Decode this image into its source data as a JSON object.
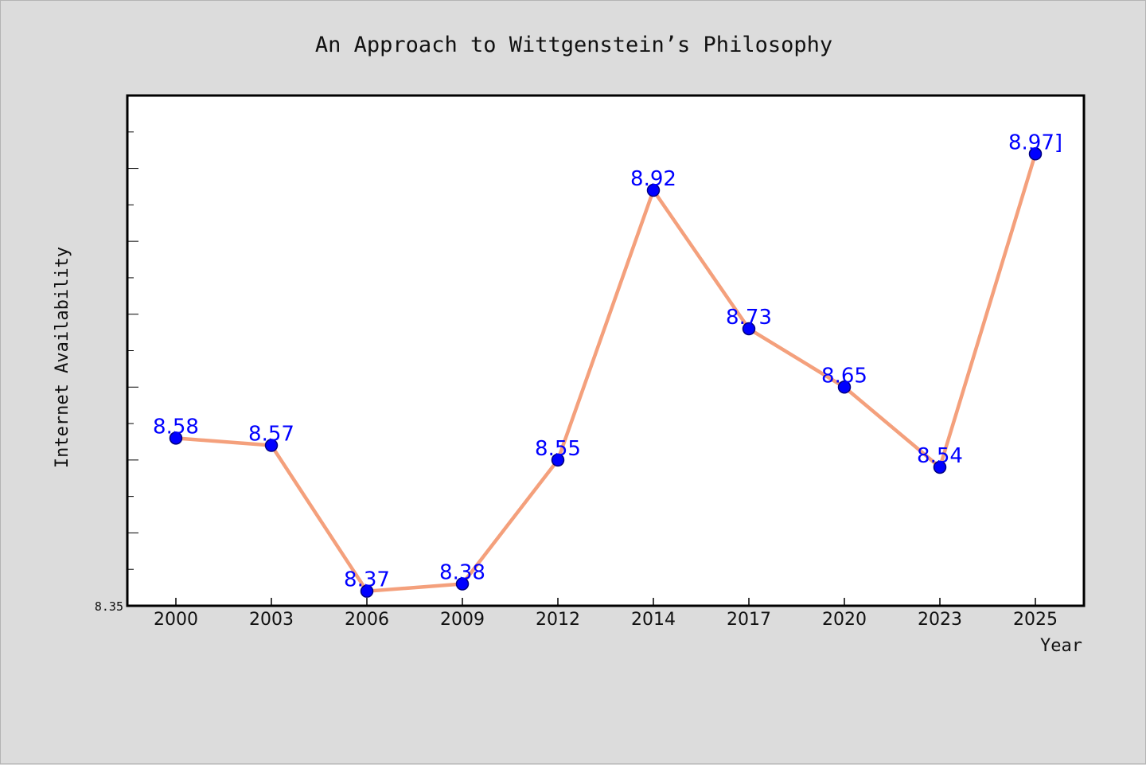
{
  "chart_data": {
    "type": "line",
    "title": "An Approach to Wittgenstein’s Philosophy",
    "xlabel": "Year",
    "ylabel": "Internet Availability",
    "categories": [
      "2000",
      "2003",
      "2006",
      "2009",
      "2012",
      "2014",
      "2017",
      "2020",
      "2023",
      "2025"
    ],
    "series": [
      {
        "values": [
          8.58,
          8.57,
          8.37,
          8.38,
          8.55,
          8.92,
          8.73,
          8.65,
          8.54,
          8.97
        ]
      }
    ],
    "data_labels": [
      "8.58",
      "8.57",
      "8.37",
      "8.38",
      "8.55",
      "8.92",
      "8.73",
      "8.65",
      "8.54",
      "8.97]"
    ],
    "yticks": [
      "8.35"
    ],
    "ylim": [
      8.35,
      9.05
    ],
    "grid": false,
    "legend": "none",
    "colors": {
      "line": "#f4a07c",
      "marker": "#0000ff",
      "marker_edge": "#000080",
      "label": "#0000ff",
      "plot_bg": "#ffffff",
      "figure_bg": "#dcdcdc"
    }
  }
}
